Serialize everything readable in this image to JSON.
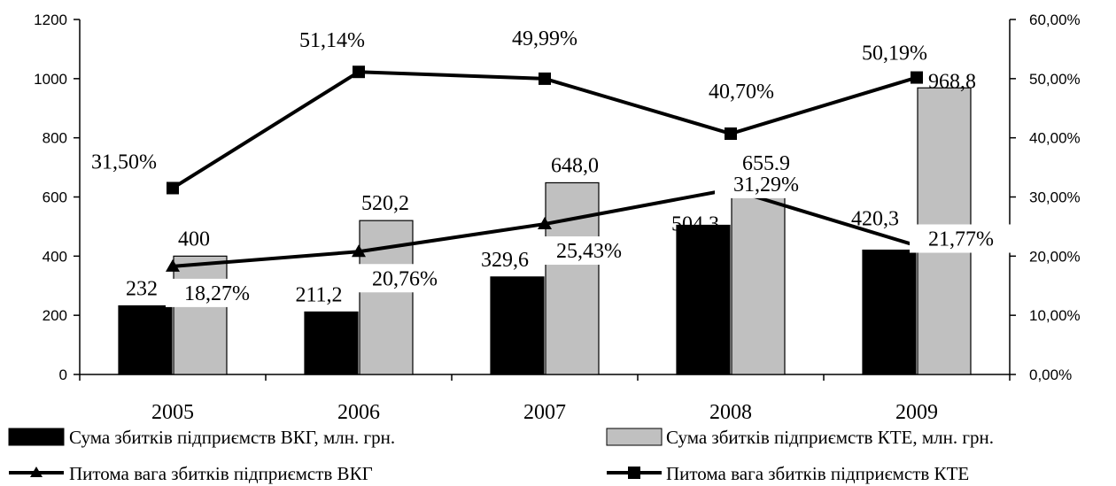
{
  "chart_data": {
    "type": "bar",
    "categories": [
      "2005",
      "2006",
      "2007",
      "2008",
      "2009"
    ],
    "ylim": [
      0,
      1200
    ],
    "y_ticks": [
      "0",
      "200",
      "400",
      "600",
      "800",
      "1000",
      "1200"
    ],
    "y2lim": [
      0,
      60
    ],
    "y2_ticks": [
      "0,00%",
      "10,00%",
      "20,00%",
      "30,00%",
      "40,00%",
      "50,00%",
      "60,00%"
    ],
    "grid": false,
    "legend_position": "bottom",
    "series": [
      {
        "name": "Сума збитків підприємств ВКГ, млн. грн.",
        "type": "bar",
        "axis": "left",
        "color": "#000000",
        "values": [
          232,
          211.2,
          329.6,
          504.3,
          420.3
        ],
        "labels": [
          "232",
          "211,2",
          "329,6",
          "504,3",
          "420,3"
        ]
      },
      {
        "name": "Сума збитків підприємств КТЕ, млн. грн.",
        "type": "bar",
        "axis": "left",
        "color": "#c0c0c0",
        "values": [
          400,
          520.2,
          648.0,
          655.9,
          968.8
        ],
        "labels": [
          "400",
          "520,2",
          "648,0",
          "655,9",
          "968,8"
        ]
      },
      {
        "name": "Питома вага збитків підприємств ВКГ",
        "type": "line",
        "axis": "right",
        "marker": "triangle",
        "color": "#000000",
        "values": [
          18.27,
          20.76,
          25.43,
          31.29,
          21.77
        ],
        "labels": [
          "18,27%",
          "20,76%",
          "25,43%",
          "31,29%",
          "21,77%"
        ]
      },
      {
        "name": "Питома вага збитків підприємств КТЕ",
        "type": "line",
        "axis": "right",
        "marker": "square",
        "color": "#000000",
        "values": [
          31.5,
          51.14,
          49.99,
          40.7,
          50.19
        ],
        "labels": [
          "31,50%",
          "51,14%",
          "49,99%",
          "40,70%",
          "50,19%"
        ]
      }
    ]
  }
}
